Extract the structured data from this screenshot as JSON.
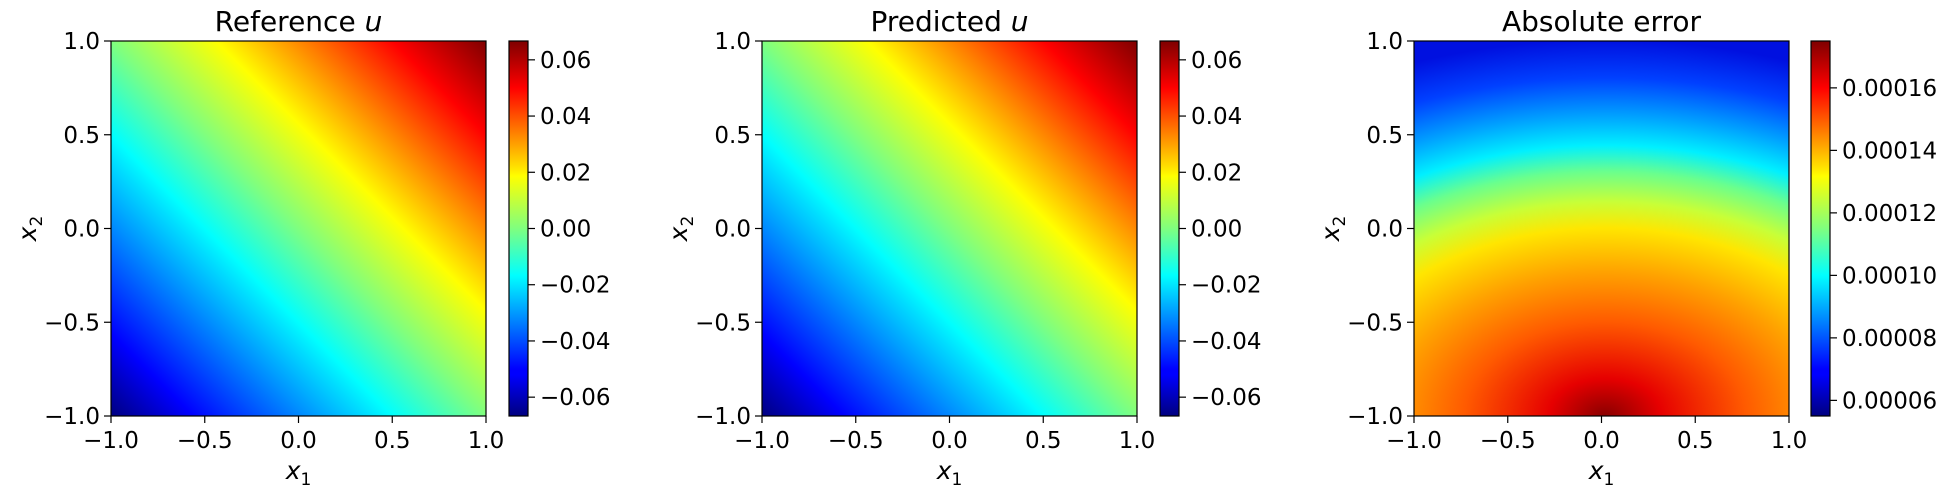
{
  "chart_data": [
    {
      "type": "heatmap",
      "title": "Reference u",
      "title_parts": [
        "Reference ",
        "u"
      ],
      "xlabel": "x1",
      "ylabel": "x2",
      "xlabel_parts": [
        "x",
        "1"
      ],
      "ylabel_parts": [
        "x",
        "2"
      ],
      "xlim": [
        -1.0,
        1.0
      ],
      "ylim": [
        -1.0,
        1.0
      ],
      "xticks": [
        "−1.0",
        "−0.5",
        "0.0",
        "0.5",
        "1.0"
      ],
      "yticks": [
        "−1.0",
        "−0.5",
        "0.0",
        "0.5",
        "1.0"
      ],
      "colormap": "jet",
      "field": "0.0333*(x1+x2)",
      "colorbar": {
        "range": [
          -0.0667,
          0.0667
        ],
        "ticks": [
          -0.06,
          -0.04,
          -0.02,
          0.0,
          0.02,
          0.04,
          0.06
        ],
        "tick_labels": [
          "−0.06",
          "−0.04",
          "−0.02",
          "0.00",
          "0.02",
          "0.04",
          "0.06"
        ]
      },
      "grid": false
    },
    {
      "type": "heatmap",
      "title": "Predicted u",
      "title_parts": [
        "Predicted ",
        "u"
      ],
      "xlabel": "x1",
      "ylabel": "x2",
      "xlabel_parts": [
        "x",
        "1"
      ],
      "ylabel_parts": [
        "x",
        "2"
      ],
      "xlim": [
        -1.0,
        1.0
      ],
      "ylim": [
        -1.0,
        1.0
      ],
      "xticks": [
        "−1.0",
        "−0.5",
        "0.0",
        "0.5",
        "1.0"
      ],
      "yticks": [
        "−1.0",
        "−0.5",
        "0.0",
        "0.5",
        "1.0"
      ],
      "colormap": "jet",
      "field": "0.0333*(x1+x2)",
      "colorbar": {
        "range": [
          -0.0667,
          0.0667
        ],
        "ticks": [
          -0.06,
          -0.04,
          -0.02,
          0.0,
          0.02,
          0.04,
          0.06
        ],
        "tick_labels": [
          "−0.06",
          "−0.04",
          "−0.02",
          "0.00",
          "0.02",
          "0.04",
          "0.06"
        ]
      },
      "grid": false
    },
    {
      "type": "heatmap",
      "title": "Absolute error",
      "title_parts": [
        "Absolute error",
        ""
      ],
      "xlabel": "x1",
      "ylabel": "x2",
      "xlabel_parts": [
        "x",
        "1"
      ],
      "ylabel_parts": [
        "x",
        "2"
      ],
      "xlim": [
        -1.0,
        1.0
      ],
      "ylim": [
        -1.0,
        1.0
      ],
      "xticks": [
        "−1.0",
        "−0.5",
        "0.0",
        "0.5",
        "1.0"
      ],
      "yticks": [
        "−1.0",
        "−0.5",
        "0.0",
        "0.5",
        "1.0"
      ],
      "colormap": "jet",
      "field": "error peaks near (x1=0.2, x2=-1.0), lowest along top edge x2=1.0",
      "colorbar": {
        "range": [
          5.5e-05,
          0.000175
        ],
        "ticks": [
          6e-05,
          8e-05,
          0.0001,
          0.00012,
          0.00014,
          0.00016
        ],
        "tick_labels": [
          "0.00006",
          "0.00008",
          "0.00010",
          "0.00012",
          "0.00014",
          "0.00016"
        ]
      },
      "grid": false
    }
  ]
}
